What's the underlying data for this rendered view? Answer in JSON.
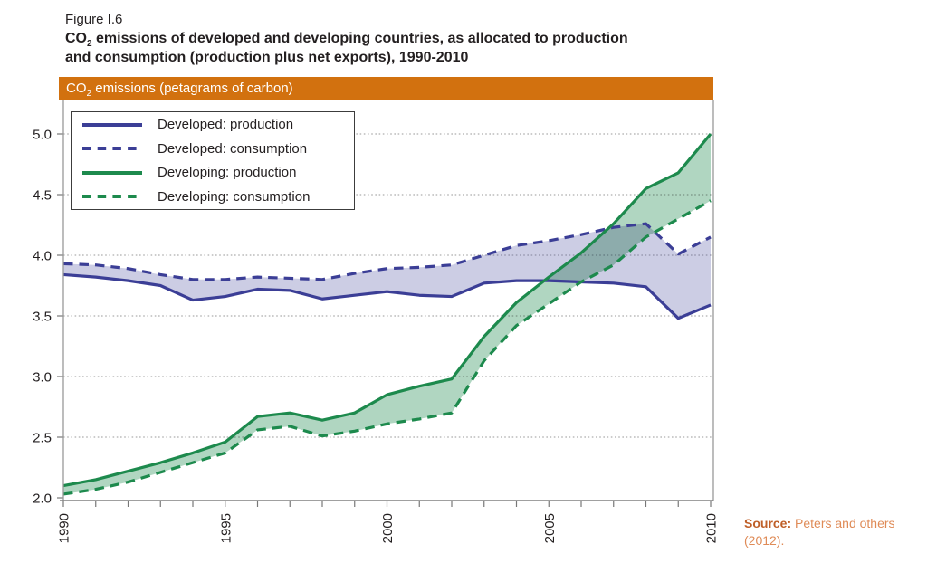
{
  "figure": {
    "label": "Figure I.6",
    "title": {
      "co": "CO",
      "sub": "2",
      "line1_rest": " emissions of developed and developing countries, as allocated to production",
      "line2": "and consumption (production plus net exports), 1990-2010"
    }
  },
  "header": {
    "co": "CO",
    "sub": "2",
    "rest": " emissions (petagrams of carbon)"
  },
  "legend": {
    "items": [
      {
        "label": "Developed: production"
      },
      {
        "label": "Developed: consumption"
      },
      {
        "label": "Developing: production"
      },
      {
        "label": "Developing: consumption"
      }
    ]
  },
  "source": {
    "label": "Source:",
    "text": " Peters and others (2012)."
  },
  "colors": {
    "developed_line": "#3b3e96",
    "developing_line": "#1d8a4d",
    "header_bg": "#d2710f",
    "header_text": "#ffffff",
    "source_label": "#bf5f28",
    "source_text": "#df8b57",
    "text": "#231f20",
    "grid": "#999999",
    "axis": "#808080"
  },
  "chart_data": {
    "type": "line",
    "title": "CO2 emissions (petagrams of carbon)",
    "xlabel": "",
    "ylabel": "CO2 emissions (petagrams of carbon)",
    "x": [
      1990,
      1991,
      1992,
      1993,
      1994,
      1995,
      1996,
      1997,
      1998,
      1999,
      2000,
      2001,
      2002,
      2003,
      2004,
      2005,
      2006,
      2007,
      2008,
      2009,
      2010
    ],
    "xlim": [
      1990,
      2010
    ],
    "ylim": [
      1.97,
      5.26
    ],
    "grid": "horizontal-dotted",
    "legend_position": "top-left",
    "y_ticks": [
      "2.0",
      "2.5",
      "3.0",
      "3.5",
      "4.0",
      "4.5",
      "5.0"
    ],
    "x_tick_labels": [
      "1990",
      "1995",
      "2000",
      "2005",
      "2010"
    ],
    "series": [
      {
        "name": "Developed: production",
        "color_key": "developed",
        "style": "solid",
        "values": [
          3.84,
          3.82,
          3.79,
          3.75,
          3.63,
          3.66,
          3.72,
          3.71,
          3.64,
          3.67,
          3.7,
          3.67,
          3.66,
          3.77,
          3.79,
          3.79,
          3.78,
          3.77,
          3.74,
          3.48,
          3.59
        ]
      },
      {
        "name": "Developed: consumption",
        "color_key": "developed",
        "style": "dashed",
        "values": [
          3.93,
          3.92,
          3.89,
          3.84,
          3.8,
          3.8,
          3.82,
          3.81,
          3.8,
          3.85,
          3.89,
          3.9,
          3.92,
          4.0,
          4.08,
          4.12,
          4.17,
          4.23,
          4.26,
          4.01,
          4.15
        ]
      },
      {
        "name": "Developing: production",
        "color_key": "developing",
        "style": "solid",
        "values": [
          2.1,
          2.15,
          2.22,
          2.29,
          2.37,
          2.46,
          2.67,
          2.7,
          2.64,
          2.7,
          2.85,
          2.92,
          2.98,
          3.33,
          3.61,
          3.82,
          4.02,
          4.26,
          4.55,
          4.68,
          5.0
        ]
      },
      {
        "name": "Developing: consumption",
        "color_key": "developing",
        "style": "dashed",
        "values": [
          2.03,
          2.07,
          2.13,
          2.21,
          2.29,
          2.37,
          2.56,
          2.59,
          2.51,
          2.55,
          2.61,
          2.65,
          2.7,
          3.13,
          3.42,
          3.6,
          3.78,
          3.92,
          4.15,
          4.3,
          4.45
        ]
      }
    ],
    "bands": [
      {
        "between": [
          0,
          1
        ],
        "color_key": "developed",
        "opacity": 0.26
      },
      {
        "between": [
          2,
          3
        ],
        "color_key": "developing",
        "opacity": 0.35,
        "blend": "multiply"
      }
    ]
  }
}
